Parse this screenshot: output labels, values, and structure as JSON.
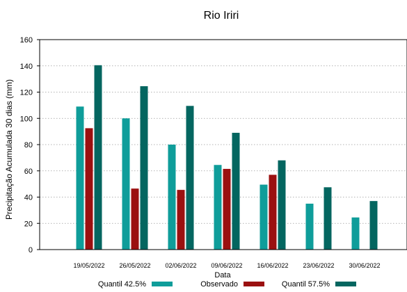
{
  "chart_data": {
    "type": "bar",
    "title": "Rio Iriri",
    "xlabel": "Data",
    "ylabel": "Precipitação Acumulada 30 dias (mm)",
    "ylim": [
      0,
      160
    ],
    "yticks": [
      0,
      20,
      40,
      60,
      80,
      100,
      120,
      140,
      160
    ],
    "grid": true,
    "legend_position": "bottom",
    "categories": [
      "19/05/2022",
      "26/05/2022",
      "02/06/2022",
      "09/06/2022",
      "16/06/2022",
      "23/06/2022",
      "30/06/2022"
    ],
    "series": [
      {
        "name": "Quantil 42.5%",
        "color": "#0f9d9a",
        "values": [
          109,
          100,
          80,
          64.5,
          49.5,
          35,
          24.5
        ]
      },
      {
        "name": "Observado",
        "color": "#9b1010",
        "values": [
          92.5,
          46.5,
          45.5,
          61.5,
          57,
          null,
          null
        ]
      },
      {
        "name": "Quantil 57.5%",
        "color": "#046660",
        "values": [
          140.5,
          124.5,
          109.5,
          89,
          68,
          47.5,
          37
        ]
      }
    ]
  }
}
